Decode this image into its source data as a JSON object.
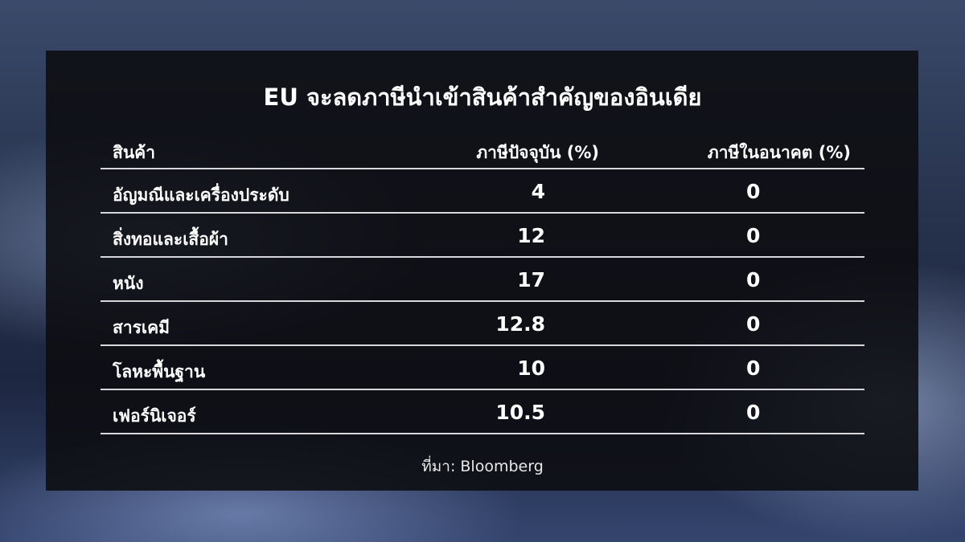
{
  "title": "EU จะลดภาษีนำเข้าสินค้าสำคัญของอินเดีย",
  "chart_data": {
    "type": "table",
    "title": "EU จะลดภาษีนำเข้าสินค้าสำคัญของอินเดีย",
    "columns": [
      "สินค้า",
      "ภาษีปัจจุบัน (%)",
      "ภาษีในอนาคต (%)"
    ],
    "rows": [
      [
        "อัญมณีและเครื่องประดับ",
        "4",
        "0"
      ],
      [
        "สิ่งทอและเสื้อผ้า",
        "12",
        "0"
      ],
      [
        "หนัง",
        "17",
        "0"
      ],
      [
        "สารเคมี",
        "12.8",
        "0"
      ],
      [
        "โลหะพื้นฐาน",
        "10",
        "0"
      ],
      [
        "เฟอร์นิเจอร์",
        "10.5",
        "0"
      ]
    ]
  },
  "source": "ที่มา: Bloomberg",
  "colors": {
    "panel": "#0c0c10",
    "text": "#ffffff",
    "rule": "#d8d8dc"
  }
}
